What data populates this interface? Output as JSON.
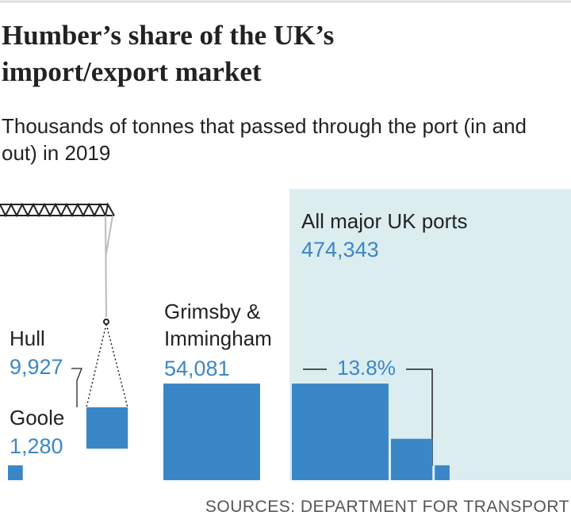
{
  "chart_data": {
    "type": "bar",
    "title": "Humber’s share of the UK’s import/export market",
    "subtitle": "Thousands of tonnes that passed through the port (in and out) in 2019",
    "categories": [
      "Goole",
      "Hull",
      "Grimsby & Immingham"
    ],
    "values": [
      1280,
      9927,
      54081
    ],
    "value_labels": [
      "1,280",
      "9,927",
      "54,081"
    ],
    "color": "#3a87c8",
    "total": {
      "label": "All major UK ports",
      "value": 474343,
      "value_label": "474,343",
      "color": "#dcedf0"
    },
    "share": {
      "value": 13.8,
      "label": "13.8%"
    },
    "source": "SOURCES: DEPARTMENT FOR TRANSPORT"
  }
}
